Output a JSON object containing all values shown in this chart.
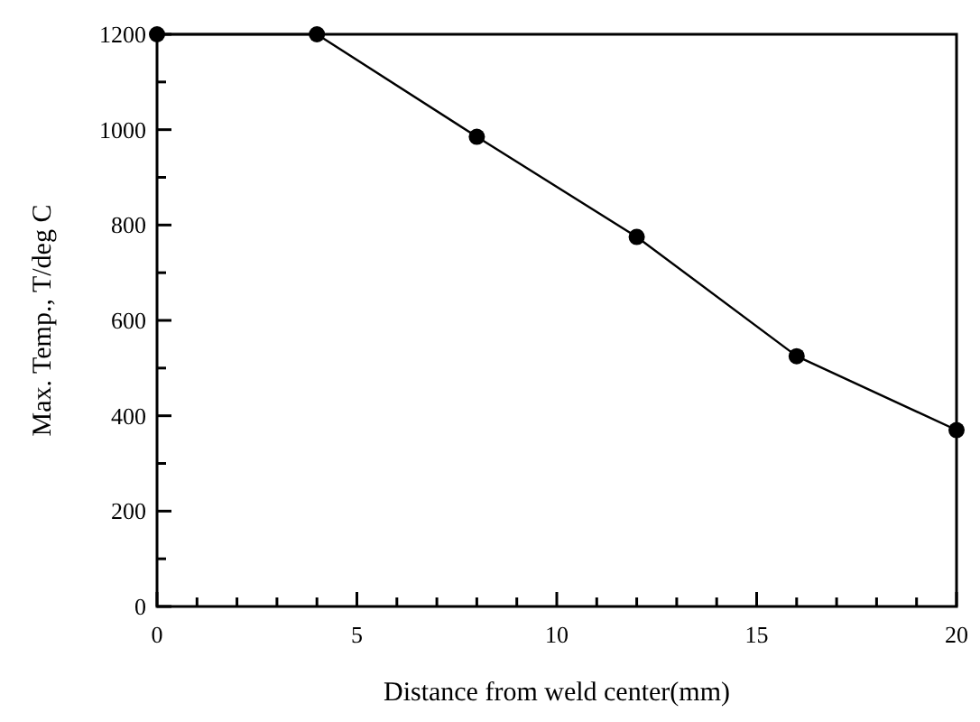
{
  "chart_data": {
    "type": "line",
    "xlabel": "Distance from weld center(mm)",
    "ylabel": "Max. Temp., T/deg C",
    "x": [
      0,
      4,
      8,
      12,
      16,
      20
    ],
    "values": [
      1200,
      1200,
      985,
      775,
      525,
      370
    ],
    "color": "#000000",
    "marker": "circle",
    "line_style": "solid",
    "xlim": [
      0,
      20
    ],
    "ylim": [
      0,
      1200
    ],
    "xticks": [
      0,
      {
        "value": 1,
        "label": null
      },
      {
        "value": 2,
        "label": null
      },
      {
        "value": 3,
        "label": null
      },
      {
        "value": 4,
        "label": null
      },
      5,
      {
        "value": 6,
        "label": null
      },
      {
        "value": 7,
        "label": null
      },
      {
        "value": 8,
        "label": null
      },
      {
        "value": 9,
        "label": null
      },
      10,
      {
        "value": 11,
        "label": null
      },
      {
        "value": 12,
        "label": null
      },
      {
        "value": 13,
        "label": null
      },
      {
        "value": 14,
        "label": null
      },
      15,
      {
        "value": 16,
        "label": null
      },
      {
        "value": 17,
        "label": null
      },
      {
        "value": 18,
        "label": null
      },
      {
        "value": 19,
        "label": null
      },
      20
    ],
    "yticks": [
      0,
      {
        "value": 100,
        "label": null
      },
      200,
      {
        "value": 300,
        "label": null
      },
      400,
      {
        "value": 500,
        "label": null
      },
      600,
      {
        "value": 700,
        "label": null
      },
      800,
      {
        "value": 900,
        "label": null
      },
      1000,
      {
        "value": 1100,
        "label": null
      },
      1200
    ]
  }
}
